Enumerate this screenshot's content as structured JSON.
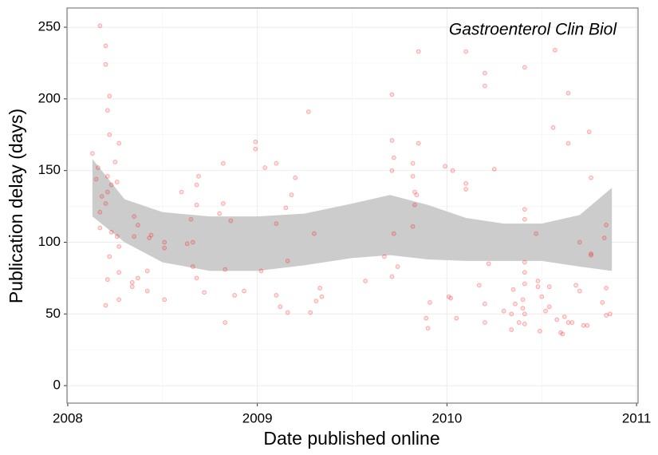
{
  "chart_data": {
    "type": "scatter",
    "annotation": "Gastroenterol Clin Biol",
    "xlabel": "Date published online",
    "ylabel": "Publication delay (days)",
    "xlim": [
      2007.996,
      2011.008
    ],
    "ylim": [
      -12.2,
      263.4
    ],
    "xticks": [
      2008,
      2009,
      2010,
      2011
    ],
    "yticks": [
      0,
      50,
      100,
      150,
      200,
      250
    ],
    "grid": true,
    "color": "#ff0000",
    "x": [
      2008.13,
      2008.17,
      2008.2,
      2008.2,
      2008.22,
      2008.21,
      2008.22,
      2008.27,
      2008.25,
      2008.16,
      2008.15,
      2008.21,
      2008.26,
      2008.18,
      2008.21,
      2008.2,
      2008.17,
      2008.23,
      2008.17,
      2008.23,
      2008.26,
      2008.22,
      2008.27,
      2008.21,
      2008.2,
      2008.27,
      2008.27,
      2008.35,
      2008.37,
      2008.35,
      2008.34,
      2008.37,
      2008.34,
      2008.42,
      2008.42,
      2008.44,
      2008.43,
      2008.51,
      2008.51,
      2008.51,
      2008.6,
      2008.63,
      2008.65,
      2008.66,
      2008.68,
      2008.68,
      2008.69,
      2008.66,
      2008.68,
      2008.72,
      2008.8,
      2008.82,
      2008.82,
      2008.83,
      2008.86,
      2008.88,
      2008.83,
      2008.93,
      2008.99,
      2008.99,
      2009.02,
      2009.04,
      2009.1,
      2009.1,
      2009.1,
      2009.12,
      2009.15,
      2009.16,
      2009.16,
      2009.18,
      2009.2,
      2009.27,
      2009.28,
      2009.3,
      2009.31,
      2009.34,
      2009.33,
      2009.57,
      2009.67,
      2009.71,
      2009.71,
      2009.71,
      2009.72,
      2009.72,
      2009.71,
      2009.74,
      2009.82,
      2009.82,
      2009.84,
      2009.83,
      2009.83,
      2009.82,
      2009.85,
      2009.85,
      2009.89,
      2009.9,
      2009.91,
      2009.99,
      2010.01,
      2010.02,
      2010.03,
      2010.05,
      2010.1,
      2010.1,
      2010.1,
      2010.17,
      2010.2,
      2010.2,
      2010.2,
      2010.2,
      2010.22,
      2010.25,
      2010.3,
      2010.34,
      2010.34,
      2010.35,
      2010.36,
      2010.38,
      2010.4,
      2010.4,
      2010.41,
      2010.41,
      2010.41,
      2010.41,
      2010.41,
      2010.41,
      2010.41,
      2010.41,
      2010.47,
      2010.48,
      2010.48,
      2010.5,
      2010.49,
      2010.52,
      2010.54,
      2010.54,
      2010.56,
      2010.57,
      2010.58,
      2010.6,
      2010.61,
      2010.62,
      2010.64,
      2010.64,
      2010.64,
      2010.66,
      2010.68,
      2010.7,
      2010.7,
      2010.72,
      2010.74,
      2010.75,
      2010.76,
      2010.76,
      2010.76,
      2010.82,
      2010.83,
      2010.84,
      2010.84,
      2010.84,
      2010.86
    ],
    "values": [
      162,
      251,
      237,
      224,
      202,
      192,
      175,
      169,
      156,
      152,
      144,
      146,
      142,
      132,
      135,
      127,
      121,
      140,
      110,
      107,
      104,
      90,
      97,
      74,
      56,
      79,
      60,
      118,
      112,
      104,
      72,
      75,
      69,
      80,
      66,
      105,
      103,
      100,
      96,
      60,
      135,
      99,
      116,
      100,
      126,
      140,
      146,
      83,
      75,
      65,
      120,
      127,
      155,
      81,
      115,
      63,
      44,
      66,
      165,
      170,
      80,
      152,
      155,
      113,
      63,
      55,
      124,
      87,
      51,
      133,
      145,
      191,
      51,
      106,
      59,
      62,
      68,
      73,
      90,
      203,
      171,
      150,
      159,
      106,
      76,
      83,
      155,
      146,
      133,
      135,
      126,
      111,
      233,
      169,
      47,
      40,
      58,
      153,
      62,
      61,
      150,
      47,
      233,
      137,
      141,
      70,
      44,
      57,
      218,
      209,
      85,
      151,
      52,
      50,
      39,
      67,
      57,
      44,
      54,
      60,
      222,
      123,
      116,
      86,
      79,
      71,
      50,
      43,
      106,
      69,
      73,
      62,
      38,
      52,
      69,
      55,
      180,
      234,
      46,
      37,
      36,
      48,
      169,
      204,
      44,
      44,
      70,
      100,
      66,
      42,
      42,
      177,
      145,
      92,
      91,
      58,
      103,
      112,
      49,
      68,
      50
    ],
    "band": {
      "color": "#cccccc",
      "x": [
        2008.13,
        2008.3,
        2008.5,
        2008.75,
        2009.0,
        2009.25,
        2009.5,
        2009.7,
        2009.9,
        2010.1,
        2010.3,
        2010.5,
        2010.7,
        2010.87
      ],
      "upper": [
        158,
        130,
        121,
        118,
        118,
        120,
        127,
        133,
        126,
        117,
        113,
        113,
        119,
        138
      ],
      "lower": [
        118,
        100,
        86,
        80,
        80,
        84,
        89,
        91,
        88,
        87,
        87,
        87,
        83,
        80
      ]
    }
  }
}
